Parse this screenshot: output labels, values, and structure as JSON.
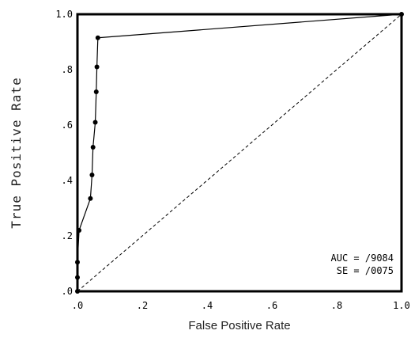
{
  "chart_data": {
    "type": "line",
    "xlabel": "False Positive Rate",
    "ylabel": "True Positive Rate",
    "xlim": [
      0,
      1
    ],
    "ylim": [
      0,
      1
    ],
    "x_ticks": [
      ".0",
      ".2",
      ".4",
      ".6",
      ".8",
      "1.0"
    ],
    "y_ticks": [
      ".0",
      ".2",
      ".4",
      ".6",
      ".8",
      "1.0"
    ],
    "grid": false,
    "series": [
      {
        "x": [
          0.0,
          0.0,
          0.0,
          0.005,
          0.04,
          0.045,
          0.048,
          0.055,
          0.058,
          0.06,
          0.063,
          1.0
        ],
        "y": [
          0.0,
          0.05,
          0.105,
          0.22,
          0.335,
          0.42,
          0.52,
          0.61,
          0.72,
          0.81,
          0.915,
          1.0
        ],
        "style": "solid-with-markers"
      },
      {
        "x": [
          0,
          1
        ],
        "y": [
          0,
          1
        ],
        "style": "dashed"
      }
    ],
    "annotations": [
      "AUC = /9084",
      "SE = /0075"
    ]
  }
}
